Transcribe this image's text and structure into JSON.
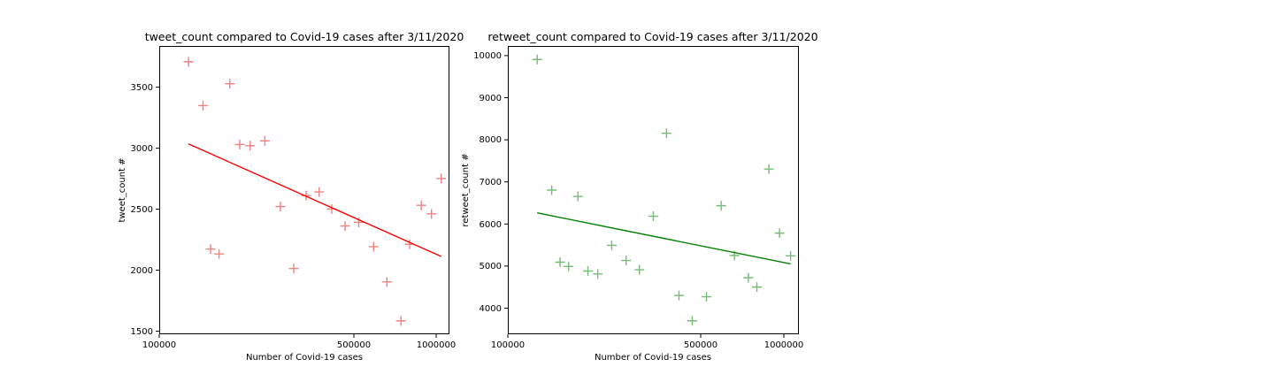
{
  "chart_data": [
    {
      "type": "scatter",
      "title": "tweet_count compared to Covid-19 cases after 3/11/2020",
      "xlabel": "Number of Covid-19 cases",
      "ylabel": "tweet_count #",
      "x_scale": "log",
      "xlim": [
        100000,
        1070000
      ],
      "ylim": [
        1480,
        3850
      ],
      "x_ticks": [
        100000,
        500000,
        1000000
      ],
      "x_tick_labels": [
        "100000",
        "500000",
        "1000000"
      ],
      "y_ticks": [
        1500,
        2000,
        2500,
        3000,
        3500
      ],
      "y_tick_labels": [
        "1500",
        "2000",
        "2500",
        "3000",
        "3500"
      ],
      "marker": "+",
      "color": "#f08080",
      "trend_color": "#ff0000",
      "points": [
        {
          "x": 127000,
          "y": 3720
        },
        {
          "x": 143000,
          "y": 3360
        },
        {
          "x": 152000,
          "y": 2180
        },
        {
          "x": 163000,
          "y": 2140
        },
        {
          "x": 178000,
          "y": 3540
        },
        {
          "x": 193000,
          "y": 3040
        },
        {
          "x": 210000,
          "y": 3030
        },
        {
          "x": 237000,
          "y": 3070
        },
        {
          "x": 269000,
          "y": 2530
        },
        {
          "x": 300000,
          "y": 2020
        },
        {
          "x": 332000,
          "y": 2620
        },
        {
          "x": 369000,
          "y": 2650
        },
        {
          "x": 409000,
          "y": 2510
        },
        {
          "x": 456000,
          "y": 2370
        },
        {
          "x": 510000,
          "y": 2400
        },
        {
          "x": 576000,
          "y": 2200
        },
        {
          "x": 642000,
          "y": 1910
        },
        {
          "x": 720000,
          "y": 1590
        },
        {
          "x": 773000,
          "y": 2220
        },
        {
          "x": 850000,
          "y": 2540
        },
        {
          "x": 924000,
          "y": 2470
        },
        {
          "x": 1000000,
          "y": 2760
        }
      ],
      "trend_line": [
        {
          "x": 127000,
          "y": 3045
        },
        {
          "x": 1000000,
          "y": 2120
        }
      ]
    },
    {
      "type": "scatter",
      "title": "retweet_count compared to Covid-19 cases after 3/11/2020",
      "xlabel": "Number of Covid-19 cases",
      "ylabel": "retweet_count #",
      "x_scale": "log",
      "xlim": [
        100000,
        1070000
      ],
      "ylim": [
        3380,
        10220
      ],
      "x_ticks": [
        100000,
        500000,
        1000000
      ],
      "x_tick_labels": [
        "100000",
        "500000",
        "1000000"
      ],
      "y_ticks": [
        4000,
        5000,
        6000,
        7000,
        8000,
        9000,
        10000
      ],
      "y_tick_labels": [
        "4000",
        "5000",
        "6000",
        "7000",
        "8000",
        "9000",
        "10000"
      ],
      "marker": "+",
      "color": "#77bb77",
      "trend_color": "#008000",
      "points": [
        {
          "x": 127000,
          "y": 9900
        },
        {
          "x": 143000,
          "y": 6800
        },
        {
          "x": 153000,
          "y": 5090
        },
        {
          "x": 164000,
          "y": 4990
        },
        {
          "x": 177000,
          "y": 6650
        },
        {
          "x": 192000,
          "y": 4880
        },
        {
          "x": 208000,
          "y": 4810
        },
        {
          "x": 233000,
          "y": 5490
        },
        {
          "x": 262000,
          "y": 5130
        },
        {
          "x": 292000,
          "y": 4910
        },
        {
          "x": 327000,
          "y": 6180
        },
        {
          "x": 364000,
          "y": 8150
        },
        {
          "x": 403000,
          "y": 4300
        },
        {
          "x": 449000,
          "y": 3700
        },
        {
          "x": 504000,
          "y": 4270
        },
        {
          "x": 568000,
          "y": 6430
        },
        {
          "x": 633000,
          "y": 5250
        },
        {
          "x": 709000,
          "y": 4720
        },
        {
          "x": 760000,
          "y": 4500
        },
        {
          "x": 838000,
          "y": 7300
        },
        {
          "x": 914000,
          "y": 5780
        },
        {
          "x": 1000000,
          "y": 5240
        }
      ],
      "trend_line": [
        {
          "x": 127000,
          "y": 6260
        },
        {
          "x": 1000000,
          "y": 5050
        }
      ]
    }
  ]
}
